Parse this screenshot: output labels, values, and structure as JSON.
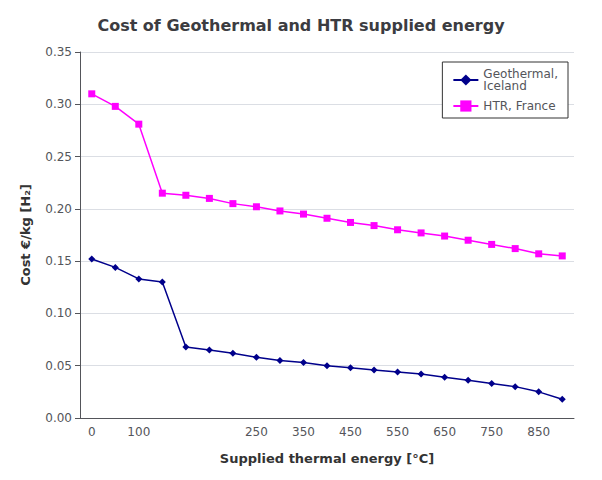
{
  "chart_data": {
    "type": "line",
    "title": "Cost of Geothermal and HTR supplied energy",
    "xlabel": "Supplied thermal energy [°C]",
    "ylabel": "Cost €/kg [H₂]",
    "categories": [
      "0",
      null,
      "100",
      null,
      null,
      null,
      null,
      "250",
      null,
      "350",
      null,
      "450",
      null,
      "550",
      null,
      "650",
      null,
      "750",
      null,
      "850",
      null
    ],
    "series": [
      {
        "name": "Geothermal,\nIceland",
        "color": "#00008B",
        "marker": "diamond",
        "values": [
          0.152,
          0.144,
          0.133,
          0.13,
          0.068,
          0.065,
          0.062,
          0.058,
          0.055,
          0.053,
          0.05,
          0.048,
          0.046,
          0.044,
          0.042,
          0.039,
          0.036,
          0.033,
          0.03,
          0.025,
          0.018
        ]
      },
      {
        "name": "HTR, France",
        "color": "#FF00FF",
        "marker": "square",
        "values": [
          0.31,
          0.298,
          0.281,
          0.215,
          0.213,
          0.21,
          0.205,
          0.202,
          0.198,
          0.195,
          0.191,
          0.187,
          0.184,
          0.18,
          0.177,
          0.174,
          0.17,
          0.166,
          0.162,
          0.157,
          0.155
        ]
      }
    ],
    "ylim": [
      0,
      0.35
    ],
    "yticks": [
      {
        "value": 0,
        "label": "0.00"
      },
      0.05,
      {
        "value": 0.1,
        "label": "0.10"
      },
      0.15,
      {
        "value": 0.2,
        "label": "0.20"
      },
      0.25,
      {
        "value": 0.3,
        "label": "0.30"
      },
      0.35
    ],
    "grid": true,
    "legend": "upper right"
  }
}
